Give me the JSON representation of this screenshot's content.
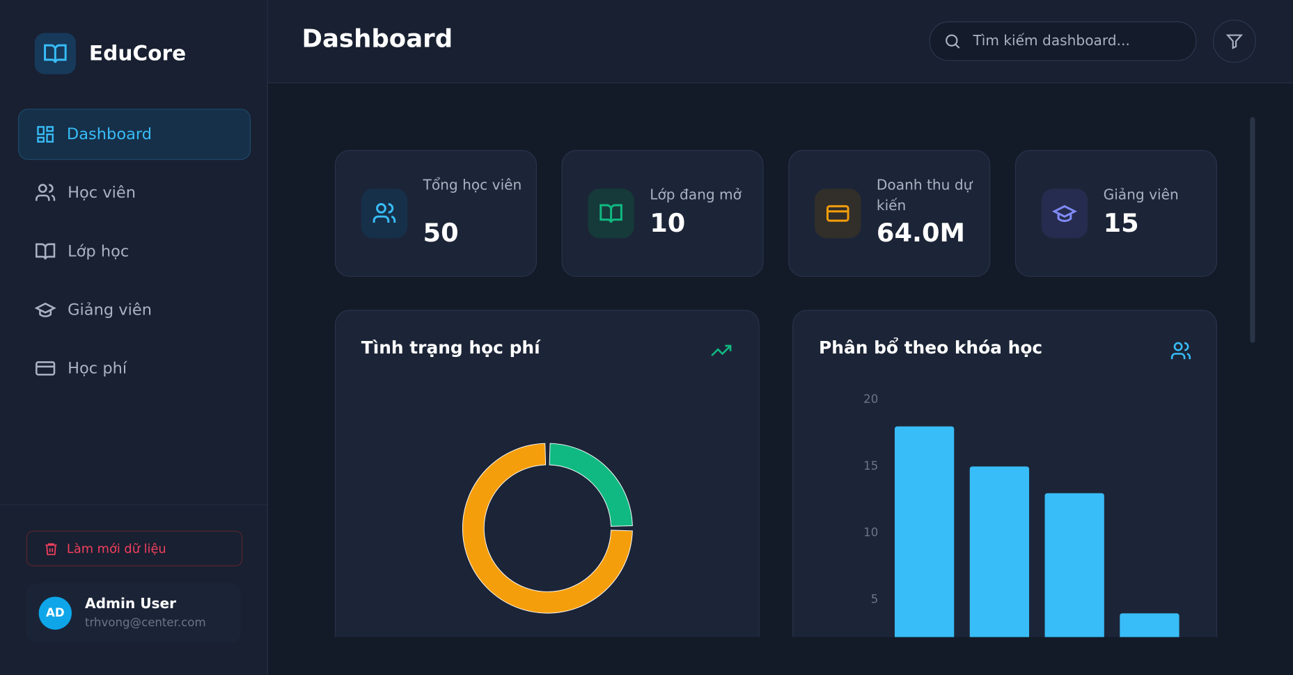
{
  "sidebar": {
    "brand": "EduCore",
    "nav": [
      "Dashboard",
      "Học viên",
      "Lớp học",
      "Giảng viên",
      "Học phí"
    ],
    "reset": "Làm mới dữ liệu",
    "user": {
      "initials": "AD",
      "name": "Admin User",
      "email": "trhvong@center.com"
    }
  },
  "header": {
    "title": "Dashboard",
    "search_placeholder": "Tìm kiếm dashboard..."
  },
  "stats": [
    {
      "label": "Tổng học viên",
      "value": 50
    },
    {
      "label": "Lớp đang mở",
      "value": 10
    },
    {
      "label": "Doanh thu dự kiến",
      "value": "64.0M"
    },
    {
      "label": "Giảng viên",
      "value": 15
    }
  ],
  "chart_data": [
    {
      "type": "pie",
      "title": "Tình trạng học phí",
      "values": [
        25,
        75
      ],
      "colors": [
        "#10b981",
        "#f59e0b"
      ],
      "donut": true
    },
    {
      "type": "bar",
      "title": "Phân bổ theo khóa học",
      "values": [
        18,
        15,
        13,
        4
      ],
      "color": "#38bdf8",
      "ylim": [
        0,
        20
      ],
      "yticks": [
        5,
        10,
        15,
        20
      ]
    }
  ]
}
